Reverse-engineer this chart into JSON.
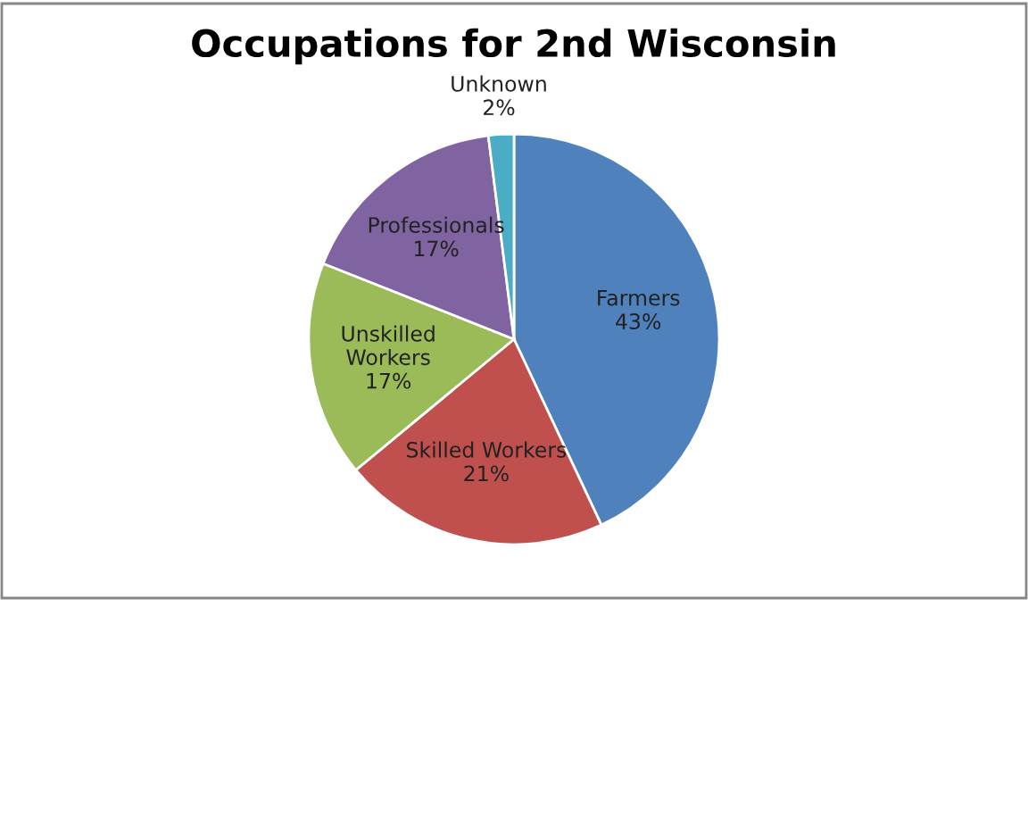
{
  "chart_data": {
    "type": "pie",
    "title": "Occupations for 2nd Wisconsin",
    "categories": [
      "Farmers",
      "Skilled Workers",
      "Unskilled\nWorkers",
      "Professionals",
      "Unknown"
    ],
    "values": [
      43,
      21,
      17,
      17,
      2
    ],
    "value_labels": [
      "43%",
      "21%",
      "17%",
      "17%",
      "2%"
    ],
    "colors": [
      "#4f81bd",
      "#c0504d",
      "#9bbb59",
      "#8064a2",
      "#4bacc6"
    ],
    "legend": false
  }
}
